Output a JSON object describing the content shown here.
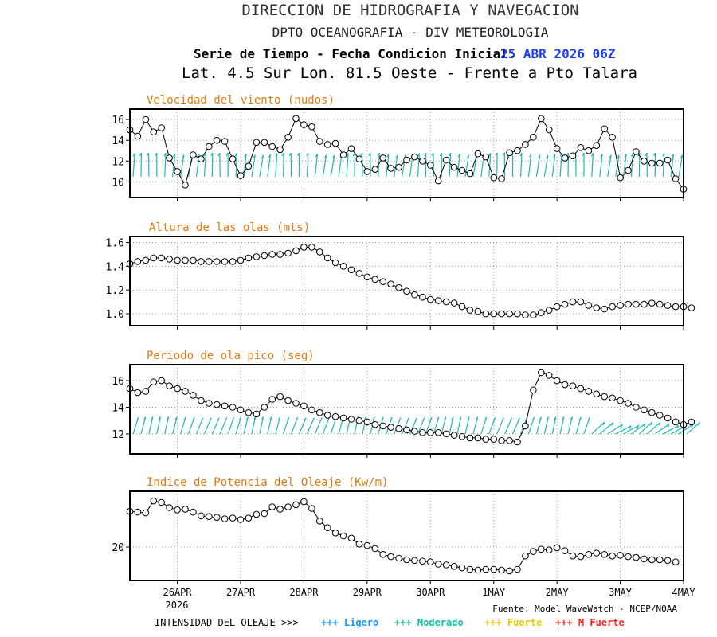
{
  "header": {
    "line1": "DIRECCION DE HIDROGRAFIA Y NAVEGACION",
    "line2": "DPTO OCEANOGRAFIA - DIV METEOROLOGIA",
    "line3_prefix": "Serie de Tiempo - Fecha Condicion Inicial:",
    "line3_date": "25 ABR 2026 06Z",
    "line4": "Lat. 4.5 Sur  Lon. 81.5 Oeste - Frente a Pto Talara"
  },
  "colors": {
    "title_orange": "#e07a10",
    "date_blue": "#1c3cff",
    "arrow_cyan": "#1fb8b8",
    "legend_ligero": "#1a9bff",
    "legend_moderado": "#10c0a0",
    "legend_fuerte": "#e8c800",
    "legend_mfuerte": "#ff2020"
  },
  "footer": {
    "source": "Fuente: Model WaveWatch - NCEP/NOAA",
    "legend_prefix": "INTENSIDAD DEL OLEAJE >>>",
    "legend_items": [
      {
        "mark": "+++",
        "label": "Ligero",
        "color": "#1a9bff"
      },
      {
        "mark": "+++",
        "label": "Moderado",
        "color": "#10c0a0"
      },
      {
        "mark": "+++",
        "label": "Fuerte",
        "color": "#e8c800"
      },
      {
        "mark": "+++",
        "label": "M Fuerte",
        "color": "#ff2020"
      }
    ]
  },
  "x_axis": {
    "tick_labels": [
      "26APR",
      "27APR",
      "28APR",
      "29APR",
      "30APR",
      "1MAY",
      "2MAY",
      "3MAY",
      "4MAY"
    ],
    "year_label": "2026"
  },
  "chart_data": [
    {
      "type": "line",
      "title": "Velocidad del viento (nudos)",
      "xlabel": "",
      "ylabel": "",
      "ylim": [
        8.5,
        17
      ],
      "yticks": [
        10,
        12,
        14,
        16
      ],
      "grid": true,
      "arrows": "wind-direction",
      "x_start": "25APR 06Z",
      "x_step_hours": 3,
      "values": [
        15.0,
        14.4,
        16.0,
        14.8,
        15.2,
        12.3,
        11.0,
        9.7,
        12.6,
        12.2,
        13.4,
        14.0,
        13.9,
        12.2,
        10.6,
        11.5,
        13.8,
        13.8,
        13.4,
        13.1,
        14.3,
        16.1,
        15.5,
        15.3,
        13.9,
        13.6,
        13.7,
        12.6,
        13.2,
        12.2,
        11.0,
        11.2,
        12.3,
        11.3,
        11.4,
        12.1,
        12.4,
        12.0,
        11.6,
        10.1,
        12.1,
        11.4,
        11.1,
        10.8,
        12.7,
        12.4,
        10.4,
        10.3,
        12.8,
        13.0,
        13.6,
        14.3,
        16.1,
        15.0,
        13.2,
        12.3,
        12.5,
        13.3,
        13.0,
        13.5,
        15.1,
        14.3,
        10.4,
        11.1,
        12.9,
        12.0,
        11.8,
        11.8,
        12.1,
        10.3,
        9.3
      ]
    },
    {
      "type": "line",
      "title": "Altura de las olas (mts)",
      "xlabel": "",
      "ylabel": "",
      "ylim": [
        0.9,
        1.65
      ],
      "yticks": [
        "1.0",
        "1.2",
        "1.4",
        "1.6"
      ],
      "grid": true,
      "x_start": "25APR 06Z",
      "x_step_hours": 3,
      "values": [
        1.42,
        1.44,
        1.45,
        1.47,
        1.47,
        1.46,
        1.45,
        1.45,
        1.45,
        1.44,
        1.44,
        1.44,
        1.44,
        1.44,
        1.45,
        1.47,
        1.48,
        1.49,
        1.5,
        1.5,
        1.51,
        1.53,
        1.56,
        1.56,
        1.52,
        1.47,
        1.43,
        1.4,
        1.37,
        1.34,
        1.31,
        1.29,
        1.27,
        1.25,
        1.22,
        1.19,
        1.16,
        1.14,
        1.12,
        1.11,
        1.1,
        1.09,
        1.06,
        1.03,
        1.02,
        1.0,
        1.0,
        1.0,
        1.0,
        1.0,
        0.99,
        0.99,
        1.01,
        1.03,
        1.06,
        1.08,
        1.1,
        1.1,
        1.07,
        1.05,
        1.04,
        1.06,
        1.07,
        1.08,
        1.08,
        1.08,
        1.09,
        1.08,
        1.07,
        1.06,
        1.06,
        1.05
      ]
    },
    {
      "type": "line",
      "title": "Periodo de ola pico (seg)",
      "xlabel": "",
      "ylabel": "",
      "ylim": [
        10.5,
        17.2
      ],
      "yticks": [
        12,
        14,
        16
      ],
      "grid": true,
      "arrows": "wave-direction",
      "x_start": "25APR 06Z",
      "x_step_hours": 3,
      "values": [
        15.4,
        15.1,
        15.2,
        15.9,
        16.0,
        15.6,
        15.4,
        15.2,
        14.9,
        14.5,
        14.3,
        14.2,
        14.1,
        14.0,
        13.8,
        13.6,
        13.5,
        14.0,
        14.6,
        14.8,
        14.5,
        14.3,
        14.1,
        13.8,
        13.6,
        13.4,
        13.3,
        13.2,
        13.1,
        13.0,
        12.9,
        12.7,
        12.6,
        12.5,
        12.4,
        12.3,
        12.2,
        12.1,
        12.1,
        12.1,
        12.0,
        11.9,
        11.8,
        11.7,
        11.7,
        11.6,
        11.6,
        11.5,
        11.5,
        11.4,
        12.6,
        15.3,
        16.6,
        16.4,
        16.0,
        15.7,
        15.6,
        15.4,
        15.2,
        15.0,
        14.8,
        14.7,
        14.5,
        14.3,
        14.0,
        13.8,
        13.6,
        13.4,
        13.2,
        12.9,
        12.7,
        12.9
      ]
    },
    {
      "type": "line",
      "title": "Indice de Potencia del Oleaje (Kw/m)",
      "xlabel": "",
      "ylabel": "",
      "ylim": [
        15.5,
        27.5
      ],
      "yticks": [
        20
      ],
      "grid": true,
      "x_start": "25APR 06Z",
      "x_step_hours": 3,
      "values": [
        24.8,
        24.7,
        24.6,
        26.2,
        26.0,
        25.3,
        25.0,
        25.1,
        24.7,
        24.2,
        24.1,
        24.0,
        23.8,
        23.9,
        23.7,
        23.9,
        24.4,
        24.5,
        25.4,
        25.1,
        25.4,
        25.7,
        26.1,
        25.2,
        23.5,
        22.6,
        21.9,
        21.5,
        21.2,
        20.4,
        20.2,
        19.8,
        19.0,
        18.7,
        18.5,
        18.3,
        18.2,
        18.1,
        18.0,
        17.7,
        17.6,
        17.4,
        17.2,
        17.0,
        16.9,
        17.0,
        17.0,
        16.9,
        16.8,
        17.0,
        18.8,
        19.4,
        19.7,
        19.6,
        19.9,
        19.5,
        18.8,
        18.7,
        19.0,
        19.2,
        19.0,
        18.8,
        18.9,
        18.7,
        18.6,
        18.4,
        18.3,
        18.3,
        18.2,
        18.0
      ]
    }
  ]
}
